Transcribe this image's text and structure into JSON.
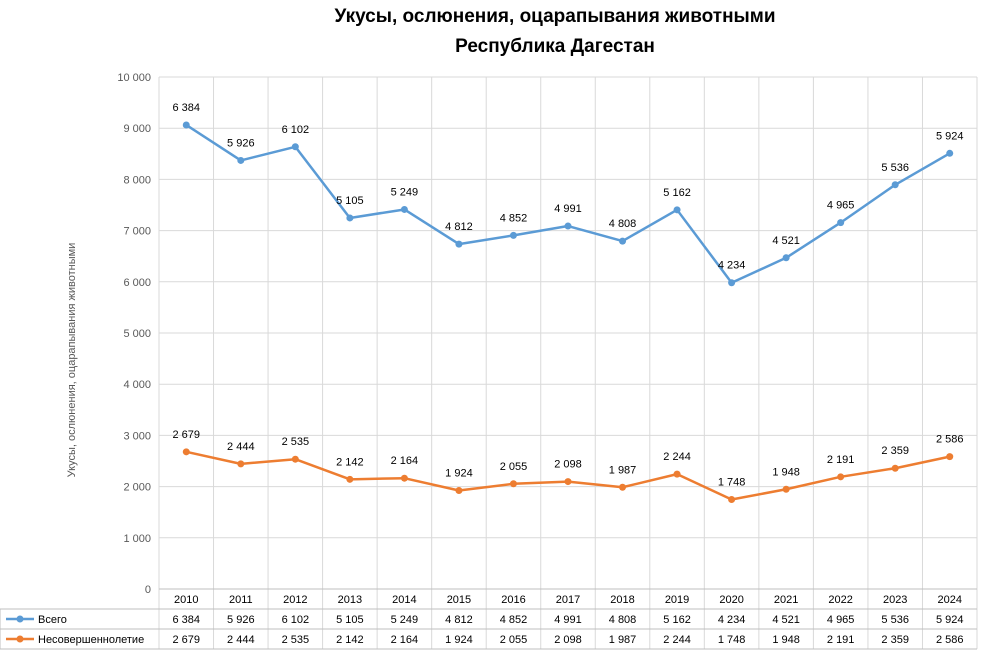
{
  "chart_data": {
    "type": "line",
    "title": "Укусы, ослюнения, оцарапывания животными",
    "subtitle": "Республика Дагестан",
    "ylabel": "Укусы, ослюнения, оцарапывания животными",
    "xlabel": "",
    "ylim": [
      0,
      10000
    ],
    "yticks": [
      "0",
      "1 000",
      "2 000",
      "3 000",
      "4 000",
      "5 000",
      "6 000",
      "7 000",
      "8 000",
      "9 000",
      "10 000"
    ],
    "grid": true,
    "legend": "data-table",
    "categories": [
      "2010",
      "2011",
      "2012",
      "2013",
      "2014",
      "2015",
      "2016",
      "2017",
      "2018",
      "2019",
      "2020",
      "2021",
      "2022",
      "2023",
      "2024"
    ],
    "series": [
      {
        "name": "Всего",
        "color": "#5b9bd5",
        "values": [
          9063,
          8370,
          8637,
          7247,
          7413,
          6736,
          6907,
          7089,
          6795,
          7406,
          5982,
          6469,
          7156,
          7895,
          8510
        ],
        "labels": [
          "6 384",
          "5 926",
          "6 102",
          "5 105",
          "5 249",
          "4 812",
          "4 852",
          "4 991",
          "4 808",
          "5 162",
          "4 234",
          "4 521",
          "4 965",
          "5 536",
          "5 924"
        ]
      },
      {
        "name": "Несовершеннолетие",
        "color": "#ed7d31",
        "values": [
          2679,
          2444,
          2535,
          2142,
          2164,
          1924,
          2055,
          2098,
          1987,
          2244,
          1748,
          1948,
          2191,
          2359,
          2586
        ],
        "labels": [
          "2 679",
          "2 444",
          "2 535",
          "2 142",
          "2 164",
          "1 924",
          "2 055",
          "2 098",
          "1 987",
          "2 244",
          "1 748",
          "1 948",
          "2 191",
          "2 359",
          "2 586"
        ]
      }
    ]
  }
}
